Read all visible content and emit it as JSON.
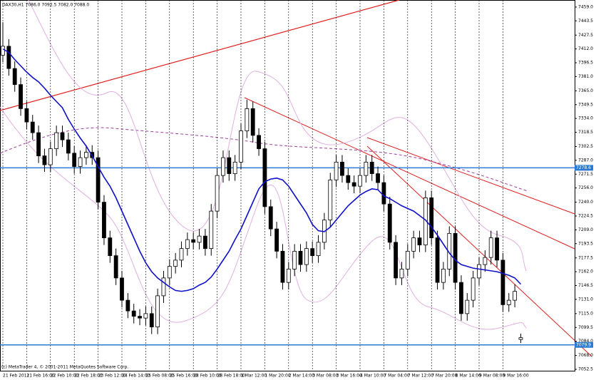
{
  "chart_data": {
    "type": "candlestick",
    "title": "DAX30,H1 7086.0 7092.5 7082.0 7088.0",
    "footer": "(c) MetaTrader 4, © 2001-2011 MetaQuotes Software Corp.",
    "categories": [
      "21 Feb 2011",
      null,
      null,
      null,
      "21 Feb 16:00",
      null,
      null,
      null,
      "22 Feb 10:00",
      null,
      null,
      null,
      "22 Feb 18:00",
      null,
      null,
      null,
      "23 Feb 12:00",
      null,
      null,
      null,
      "24 Feb 14:00",
      null,
      null,
      null,
      "25 Feb 08:00",
      null,
      null,
      null,
      "25 Feb 16:00",
      null,
      null,
      null,
      "28 Feb 10:00",
      null,
      null,
      null,
      "28 Feb 18:00",
      null,
      null,
      null,
      "1 Mar 12:00",
      null,
      null,
      null,
      "1 Mar 20:00",
      null,
      null,
      null,
      "2 Mar 14:00",
      null,
      null,
      null,
      "3 Mar 08:00",
      null,
      null,
      null,
      "3 Mar 16:00",
      null,
      null,
      null,
      "4 Mar 10:00",
      null,
      null,
      null,
      "7 Mar 04:00",
      null,
      null,
      null,
      "7 Mar 12:00",
      null,
      null,
      null,
      "7 Mar 20:00",
      null,
      null,
      null,
      "8 Mar 14:00",
      null,
      null,
      null,
      "9 Mar 08:00",
      null,
      null,
      null,
      "9 Mar 16:00",
      null,
      null,
      null
    ],
    "open": [
      7405,
      7415,
      7390,
      7372,
      7345,
      7330,
      7318,
      7292,
      7282,
      7300,
      7318,
      7310,
      7295,
      7280,
      7290,
      7296,
      7290,
      7240,
      7200,
      7180,
      7155,
      7130,
      7118,
      7112,
      7110,
      7115,
      7100,
      7135,
      7155,
      7168,
      7175,
      7188,
      7198,
      7195,
      7202,
      7188,
      7230,
      7270,
      7290,
      7272,
      7285,
      7320,
      7345,
      7315,
      7300,
      7235,
      7210,
      7185,
      7150,
      7165,
      7185,
      7170,
      7188,
      7180,
      7195,
      7220,
      7265,
      7285,
      7270,
      7262,
      7258,
      7270,
      7285,
      7272,
      7262,
      7238,
      7195,
      7155,
      7165,
      7185,
      7200,
      7192,
      7245,
      7200,
      7150,
      7165,
      7205,
      7150,
      7115,
      7130,
      7155,
      7170,
      7178,
      7200,
      7175,
      7125,
      7130,
      7086
    ],
    "high": [
      7442,
      7423,
      7398,
      7380,
      7353,
      7338,
      7326,
      7300,
      7308,
      7326,
      7326,
      7318,
      7303,
      7298,
      7304,
      7304,
      7298,
      7248,
      7208,
      7188,
      7163,
      7138,
      7126,
      7120,
      7123,
      7123,
      7143,
      7163,
      7176,
      7183,
      7196,
      7206,
      7206,
      7210,
      7210,
      7238,
      7278,
      7298,
      7298,
      7293,
      7328,
      7355,
      7353,
      7323,
      7308,
      7243,
      7218,
      7193,
      7173,
      7193,
      7193,
      7196,
      7196,
      7203,
      7228,
      7273,
      7293,
      7293,
      7278,
      7270,
      7278,
      7293,
      7293,
      7280,
      7270,
      7246,
      7203,
      7173,
      7193,
      7208,
      7208,
      7253,
      7253,
      7208,
      7173,
      7213,
      7213,
      7158,
      7138,
      7163,
      7178,
      7186,
      7208,
      7208,
      7183,
      7138,
      7148,
      7092.5
    ],
    "low": [
      7397,
      7382,
      7364,
      7337,
      7322,
      7310,
      7284,
      7274,
      7274,
      7292,
      7302,
      7287,
      7272,
      7272,
      7282,
      7282,
      7232,
      7192,
      7172,
      7147,
      7122,
      7110,
      7104,
      7102,
      7102,
      7092,
      7092,
      7127,
      7147,
      7160,
      7167,
      7180,
      7187,
      7187,
      7180,
      7180,
      7222,
      7262,
      7264,
      7264,
      7277,
      7312,
      7307,
      7292,
      7227,
      7202,
      7177,
      7142,
      7142,
      7157,
      7162,
      7162,
      7172,
      7172,
      7187,
      7212,
      7257,
      7262,
      7254,
      7250,
      7250,
      7262,
      7264,
      7254,
      7230,
      7187,
      7147,
      7147,
      7157,
      7177,
      7184,
      7184,
      7192,
      7142,
      7142,
      7157,
      7142,
      7107,
      7107,
      7122,
      7147,
      7162,
      7170,
      7167,
      7117,
      7117,
      7122,
      7082
    ],
    "close": [
      7415,
      7390,
      7372,
      7345,
      7330,
      7318,
      7292,
      7282,
      7300,
      7318,
      7310,
      7295,
      7280,
      7290,
      7296,
      7290,
      7240,
      7200,
      7180,
      7155,
      7130,
      7118,
      7112,
      7110,
      7115,
      7100,
      7135,
      7155,
      7168,
      7175,
      7188,
      7198,
      7195,
      7202,
      7188,
      7230,
      7270,
      7290,
      7272,
      7285,
      7320,
      7345,
      7315,
      7300,
      7235,
      7210,
      7185,
      7150,
      7165,
      7185,
      7170,
      7188,
      7180,
      7195,
      7220,
      7265,
      7285,
      7270,
      7262,
      7258,
      7270,
      7285,
      7272,
      7262,
      7238,
      7195,
      7155,
      7165,
      7185,
      7200,
      7192,
      7245,
      7200,
      7150,
      7165,
      7205,
      7150,
      7115,
      7130,
      7155,
      7170,
      7178,
      7200,
      7175,
      7125,
      7130,
      7140,
      7088
    ],
    "series": [
      {
        "color": "#1010c8",
        "values": [
          7412,
          7408,
          7400,
          7393,
          7386,
          7380,
          7375,
          7368,
          7360,
          7353,
          7346,
          7333,
          7322,
          7312,
          7303,
          7292,
          7280,
          7268,
          7258,
          7245,
          7230,
          7215,
          7200,
          7185,
          7172,
          7162,
          7155,
          7150,
          7145,
          7141,
          7140,
          7141,
          7143,
          7147,
          7150,
          7156,
          7165,
          7175,
          7185,
          7198,
          7210,
          7225,
          7240,
          7255,
          7263,
          7266,
          7267,
          7265,
          7258,
          7248,
          7238,
          7228,
          7215,
          7208,
          7207,
          7212,
          7220,
          7228,
          7236,
          7242,
          7248,
          7252,
          7255,
          7254,
          7247,
          7244,
          7240,
          7236,
          7233,
          7230,
          7225,
          7220,
          7212,
          7203,
          7193,
          7183,
          7175,
          7170,
          7168,
          7166,
          7165,
          7164,
          7163,
          7162,
          7160,
          7158,
          7155,
          7148
        ]
      }
    ],
    "hlines": [
      {
        "value": 7278.6,
        "color": "#2a7bd4"
      },
      {
        "value": 7079.9,
        "color": "#2a7bd4"
      }
    ],
    "ylim": [
      7050.9,
      7466.9
    ],
    "yticks": [
      {
        "value": 7459,
        "label": "7459.0"
      },
      7443.5,
      7427.5,
      {
        "value": 7412,
        "label": "7412.0"
      },
      7396.5,
      {
        "value": 7381,
        "label": "7381.0"
      },
      {
        "value": 7365,
        "label": "7365.0"
      },
      7349.5,
      {
        "value": 7334,
        "label": "7334.0"
      },
      7318.5,
      7302.5,
      {
        "value": 7287,
        "label": "7287.0"
      },
      7271.5,
      {
        "value": 7256,
        "label": "7256.0"
      },
      {
        "value": 7240,
        "label": "7240.0"
      },
      7224.5,
      {
        "value": 7209,
        "label": "7209.0"
      },
      7193.5,
      7177.5,
      {
        "value": 7162,
        "label": "7162.0"
      },
      7146.5,
      {
        "value": 7131,
        "label": "7131.0"
      },
      {
        "value": 7115,
        "label": "7115.0"
      },
      7099.5,
      {
        "value": 7084,
        "label": "7084.0"
      },
      {
        "value": 7068,
        "label": "7068.0"
      },
      7052.5
    ],
    "candle_up_color": "#ffffff",
    "candle_down_color": "#000000"
  }
}
